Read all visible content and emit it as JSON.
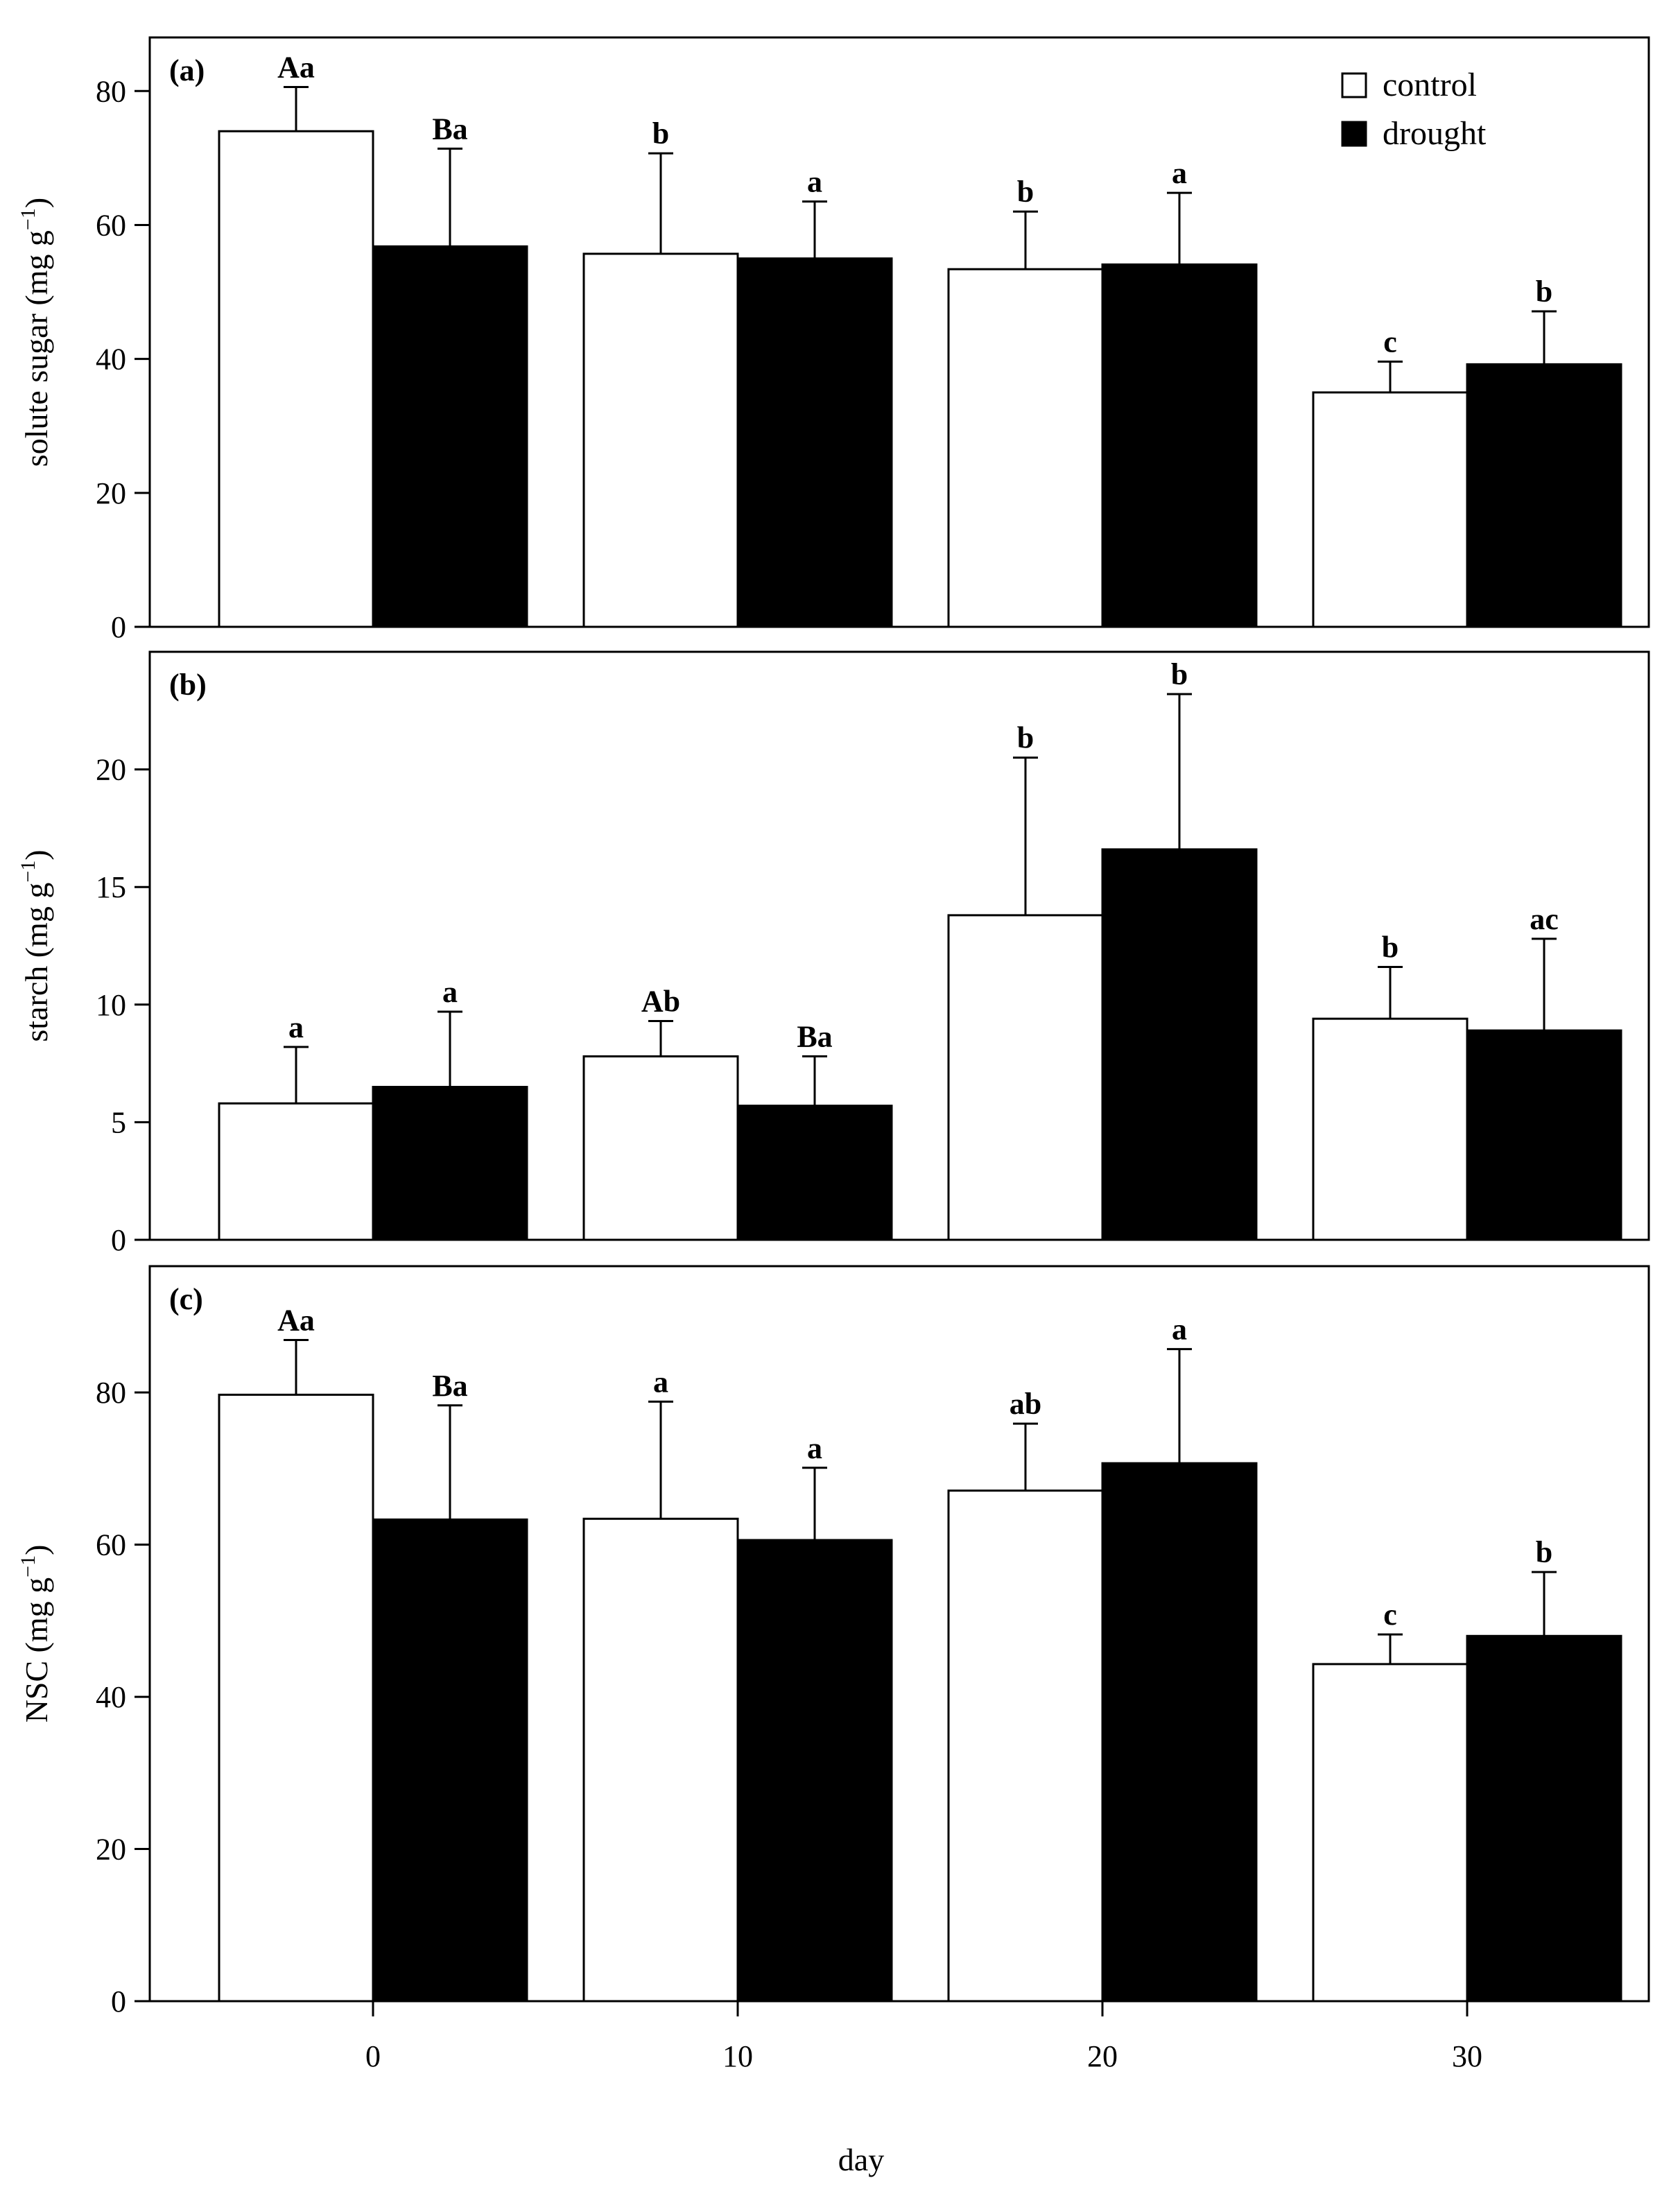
{
  "chart_data": {
    "type": "bar",
    "layout": "three stacked panels sharing x axis",
    "categories": [
      "0",
      "10",
      "20",
      "30"
    ],
    "xlabel": "day",
    "legend": {
      "placement": "top-right of panel (a)",
      "entries": [
        {
          "name": "control",
          "fill": "#ffffff"
        },
        {
          "name": "drought",
          "fill": "#000000"
        }
      ]
    },
    "panels": [
      {
        "panel_label": "(a)",
        "ylabel": "solute sugar (mg g",
        "ylabel_sup": "−1",
        "ylabel_close": ")",
        "ylim": [
          0,
          88
        ],
        "yticks": [
          0,
          20,
          40,
          60,
          80
        ],
        "series": [
          {
            "name": "control",
            "values": [
              74,
              55.7,
              53.4,
              35
            ],
            "errors": [
              6.6,
              15,
              8.6,
              4.6
            ],
            "labels": [
              "Aa",
              "b",
              "b",
              "c"
            ]
          },
          {
            "name": "drought",
            "values": [
              56.8,
              55,
              54.1,
              39.2
            ],
            "errors": [
              14.6,
              8.5,
              10.7,
              7.9
            ],
            "labels": [
              "Ba",
              "a",
              "a",
              "b"
            ]
          }
        ]
      },
      {
        "panel_label": "(b)",
        "ylabel": "starch (mg g",
        "ylabel_sup": "−1",
        "ylabel_close": ")",
        "ylim": [
          0,
          25
        ],
        "yticks": [
          0,
          5,
          10,
          15,
          20
        ],
        "series": [
          {
            "name": "control",
            "values": [
              5.8,
              7.8,
              13.8,
              9.4
            ],
            "errors": [
              2.4,
              1.5,
              6.7,
              2.2
            ],
            "labels": [
              "a",
              "Ab",
              "b",
              "b"
            ]
          },
          {
            "name": "drought",
            "values": [
              6.5,
              5.7,
              16.6,
              8.9
            ],
            "errors": [
              3.2,
              2.1,
              6.6,
              3.9
            ],
            "labels": [
              "a",
              "Ba",
              "b",
              "ac"
            ]
          }
        ]
      },
      {
        "panel_label": "(c)",
        "ylabel": "NSC (mg g",
        "ylabel_sup": "−1",
        "ylabel_close": ")",
        "ylim": [
          0,
          96.6
        ],
        "yticks": [
          0,
          20,
          40,
          60,
          80
        ],
        "series": [
          {
            "name": "control",
            "values": [
              79.7,
              63.4,
              67.1,
              44.3
            ],
            "errors": [
              7.2,
              15.4,
              8.8,
              3.9
            ],
            "labels": [
              "Aa",
              "a",
              "ab",
              "c"
            ]
          },
          {
            "name": "drought",
            "values": [
              63.3,
              60.6,
              70.7,
              48
            ],
            "errors": [
              15,
              9.5,
              15,
              8.4
            ],
            "labels": [
              "Ba",
              "a",
              "a",
              "b"
            ]
          }
        ]
      }
    ]
  }
}
